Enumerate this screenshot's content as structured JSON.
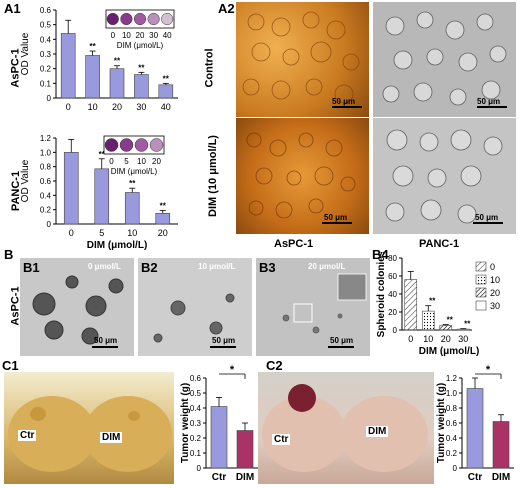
{
  "labels": {
    "a1": "A1",
    "a2": "A2",
    "b": "B",
    "b1": "B1",
    "b2": "B2",
    "b3": "B3",
    "b4": "B4",
    "c1": "C1",
    "c2": "C2",
    "aspc1": "AsPC-1",
    "panc1": "PANC-1",
    "control": "Control",
    "dim10": "DIM (10 μmol/L)",
    "aspc1_bottom": "AsPC-1",
    "panc1_bottom": "PANC-1",
    "aspc1_b": "AsPC-1",
    "b1_conc": "0 μmol/L",
    "b2_conc": "10 μmol/L",
    "b3_conc": "20 μmol/L",
    "scale_50": "50 μm",
    "ctr": "Ctr",
    "dim": "DIM"
  },
  "chart_data": [
    {
      "id": "A1-AsPC-1",
      "type": "bar",
      "categories": [
        "0",
        "10",
        "20",
        "30",
        "40"
      ],
      "values": [
        0.44,
        0.29,
        0.2,
        0.16,
        0.09
      ],
      "errors": [
        0.09,
        0.03,
        0.02,
        0.015,
        0.01
      ],
      "significance": [
        "",
        "**",
        "**",
        "**",
        "**"
      ],
      "ylabel": "OD Value",
      "xlabel": "",
      "ylim": [
        0,
        0.6
      ],
      "yticks": [
        "0",
        "0.1",
        "0.2",
        "0.3",
        "0.4",
        "0.5",
        "0.6"
      ],
      "inset_labels": [
        "0",
        "10",
        "20",
        "30",
        "40"
      ],
      "inset_xlabel": "DIM (μmol/L)",
      "color": "#9999dd"
    },
    {
      "id": "A1-PANC-1",
      "type": "bar",
      "categories": [
        "0",
        "5",
        "10",
        "20"
      ],
      "values": [
        1.0,
        0.77,
        0.44,
        0.15
      ],
      "errors": [
        0.18,
        0.14,
        0.06,
        0.04
      ],
      "significance": [
        "",
        "**",
        "**",
        "**"
      ],
      "ylabel": "OD Value",
      "xlabel": "DIM (μmol/L)",
      "ylim": [
        0,
        1.2
      ],
      "yticks": [
        "0",
        "0.2",
        "0.4",
        "0.6",
        "0.8",
        "1.0",
        "1.2"
      ],
      "inset_labels": [
        "0",
        "5",
        "10",
        "20"
      ],
      "inset_xlabel": "DIM (μmol/L)",
      "color": "#9999dd"
    },
    {
      "id": "B4",
      "type": "bar",
      "categories": [
        "0",
        "10",
        "20",
        "30"
      ],
      "values": [
        56,
        21,
        5,
        1
      ],
      "errors": [
        9,
        6,
        1,
        0.5
      ],
      "significance": [
        "",
        "**",
        "**",
        "**"
      ],
      "ylabel": "Spheroid colonies",
      "xlabel": "DIM (μmol/L)",
      "ylim": [
        0,
        80
      ],
      "yticks": [
        "0",
        "20",
        "40",
        "60",
        "80"
      ],
      "legend": [
        "0",
        "10",
        "20",
        "30"
      ]
    },
    {
      "id": "C1",
      "type": "bar",
      "categories": [
        "Ctr",
        "DIM"
      ],
      "values": [
        0.41,
        0.25
      ],
      "errors": [
        0.06,
        0.05
      ],
      "colors": [
        "#9999dd",
        "#aa3366"
      ],
      "ylabel": "Tumor weight (g)",
      "xlabel": "",
      "ylim": [
        0,
        0.6
      ],
      "yticks": [
        "0",
        "0.1",
        "0.2",
        "0.3",
        "0.4",
        "0.5",
        "0.6"
      ],
      "significance_bracket": "*"
    },
    {
      "id": "C2",
      "type": "bar",
      "categories": [
        "Ctr",
        "DIM"
      ],
      "values": [
        1.06,
        0.62
      ],
      "errors": [
        0.14,
        0.09
      ],
      "colors": [
        "#9999dd",
        "#aa3366"
      ],
      "ylabel": "Tumor weight (g)",
      "xlabel": "",
      "ylim": [
        0,
        1.2
      ],
      "yticks": [
        "0",
        "0.2",
        "0.4",
        "0.6",
        "0.8",
        "1.0",
        "1.2"
      ],
      "significance_bracket": "*"
    }
  ]
}
